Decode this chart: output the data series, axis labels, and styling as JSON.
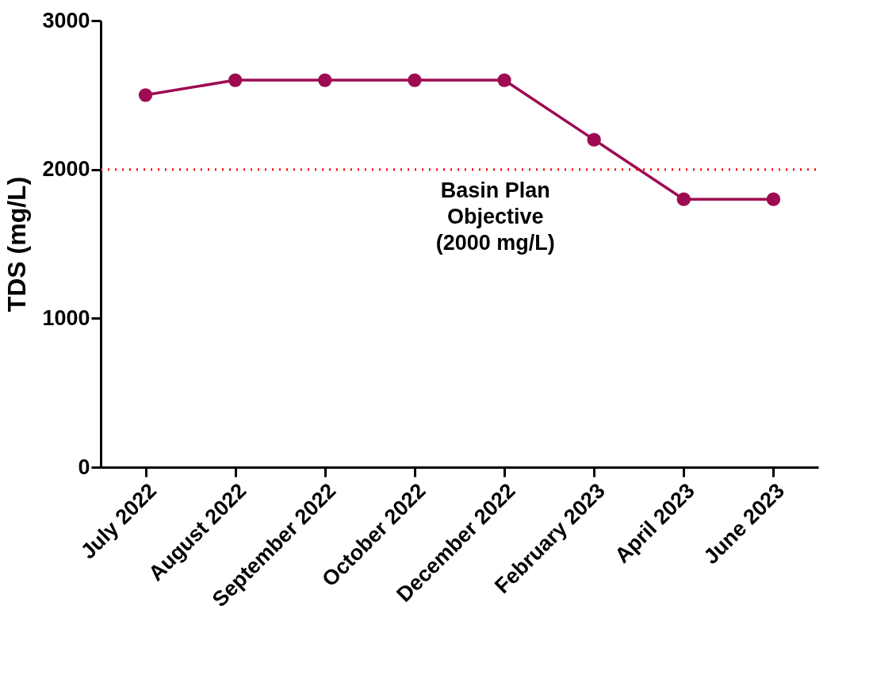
{
  "chart_data": {
    "type": "line",
    "ylabel": "TDS (mg/L)",
    "categories": [
      "July 2022",
      "August 2022",
      "September 2022",
      "October 2022",
      "December 2022",
      "February 2023",
      "April 2023",
      "June 2023"
    ],
    "series": [
      {
        "color": "#9e0b52",
        "values": [
          2500,
          2600,
          2600,
          2600,
          2600,
          2200,
          1800,
          1800
        ]
      }
    ],
    "ylim": [
      0,
      3000
    ],
    "yticks": [
      0,
      1000,
      2000,
      3000
    ],
    "ref_lines": [
      {
        "axis": "y",
        "value": 2000,
        "label": "Basin Plan\nObjective\n(2000 mg/L)",
        "color": "#ff0000",
        "line_style": "dotted"
      }
    ],
    "marker": "circle",
    "line_style": "solid",
    "grid": false
  }
}
